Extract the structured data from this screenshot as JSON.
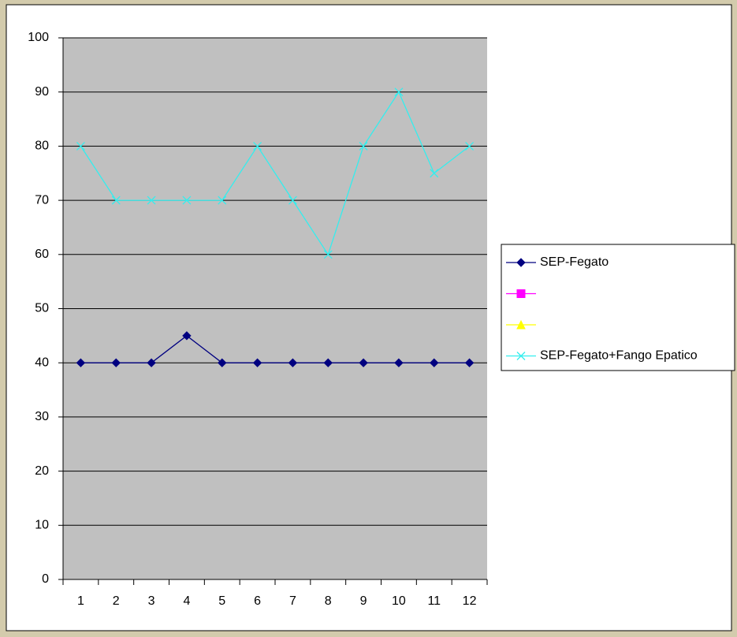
{
  "chart_data": {
    "type": "line",
    "categories": [
      "1",
      "2",
      "3",
      "4",
      "5",
      "6",
      "7",
      "8",
      "9",
      "10",
      "11",
      "12"
    ],
    "series": [
      {
        "name": "SEP-Fegato",
        "color": "#000080",
        "marker": "diamond",
        "values": [
          40,
          40,
          40,
          45,
          40,
          40,
          40,
          40,
          40,
          40,
          40,
          40
        ]
      },
      {
        "color": "#ff00ff",
        "marker": "square",
        "values": [
          null,
          null,
          null,
          null,
          null,
          null,
          null,
          null,
          null,
          null,
          null,
          null
        ]
      },
      {
        "color": "#ffff00",
        "marker": "triangle",
        "values": [
          null,
          null,
          null,
          null,
          null,
          null,
          null,
          null,
          null,
          null,
          null,
          null
        ]
      },
      {
        "name": "SEP-Fegato+Fango Epatico",
        "color": "#33eeee",
        "marker": "x",
        "values": [
          80,
          70,
          70,
          70,
          70,
          80,
          70,
          60,
          80,
          90,
          75,
          80
        ]
      }
    ],
    "ylim": [
      0,
      100
    ],
    "yticks": [
      0,
      10,
      20,
      30,
      40,
      50,
      60,
      70,
      80,
      90,
      100
    ],
    "grid": true,
    "legend": "right"
  }
}
